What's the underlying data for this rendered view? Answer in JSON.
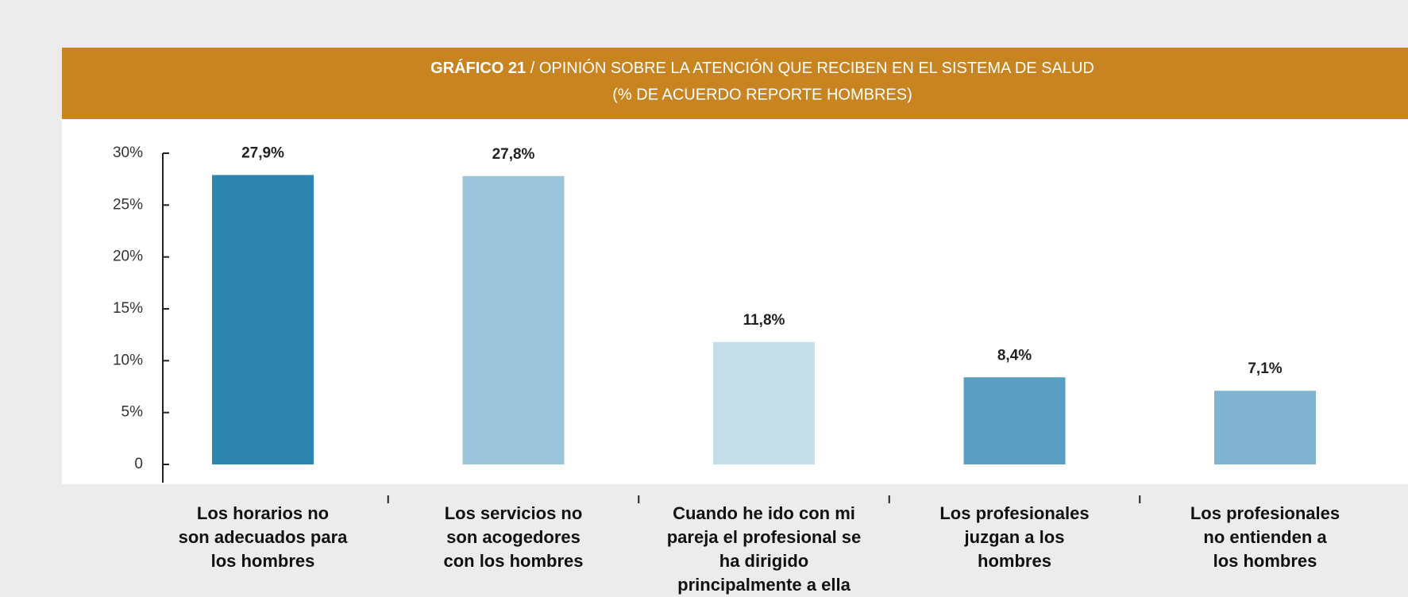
{
  "chart_data": {
    "type": "bar",
    "title_number": "GRÁFICO 21",
    "title": "/ OPINIÓN SOBRE LA ATENCIÓN QUE RECIBEN EN EL SISTEMA DE SALUD",
    "subtitle": "(% DE ACUERDO REPORTE HOMBRES)",
    "categories": [
      "Los horarios no\nson adecuados para\nlos hombres",
      "Los servicios no\nson acogedores\ncon los hombres",
      "Cuando he ido con mi\npareja el profesional se\nha dirigido\nprincipalmente a ella",
      "Los profesionales\njuzgan a los\nhombres",
      "Los profesionales\nno entienden a\nlos hombres"
    ],
    "values": [
      27.9,
      27.8,
      11.8,
      8.4,
      7.1
    ],
    "value_labels": [
      "27,9%",
      "27,8%",
      "11,8%",
      "8,4%",
      "7,1%"
    ],
    "colors": [
      "#2e86b0",
      "#9dc5da",
      "#c5deea",
      "#5a9fc2",
      "#7fb3cf"
    ],
    "ylim": [
      0,
      30
    ],
    "yticks": [
      0,
      {
        "value": 5,
        "label": "5%"
      },
      {
        "value": 10,
        "label": "10%"
      },
      {
        "value": 15,
        "label": "15%"
      },
      {
        "value": 20,
        "label": "20%"
      },
      {
        "value": 25,
        "label": "25%"
      },
      {
        "value": 30,
        "label": "30%"
      }
    ],
    "grid": false
  }
}
